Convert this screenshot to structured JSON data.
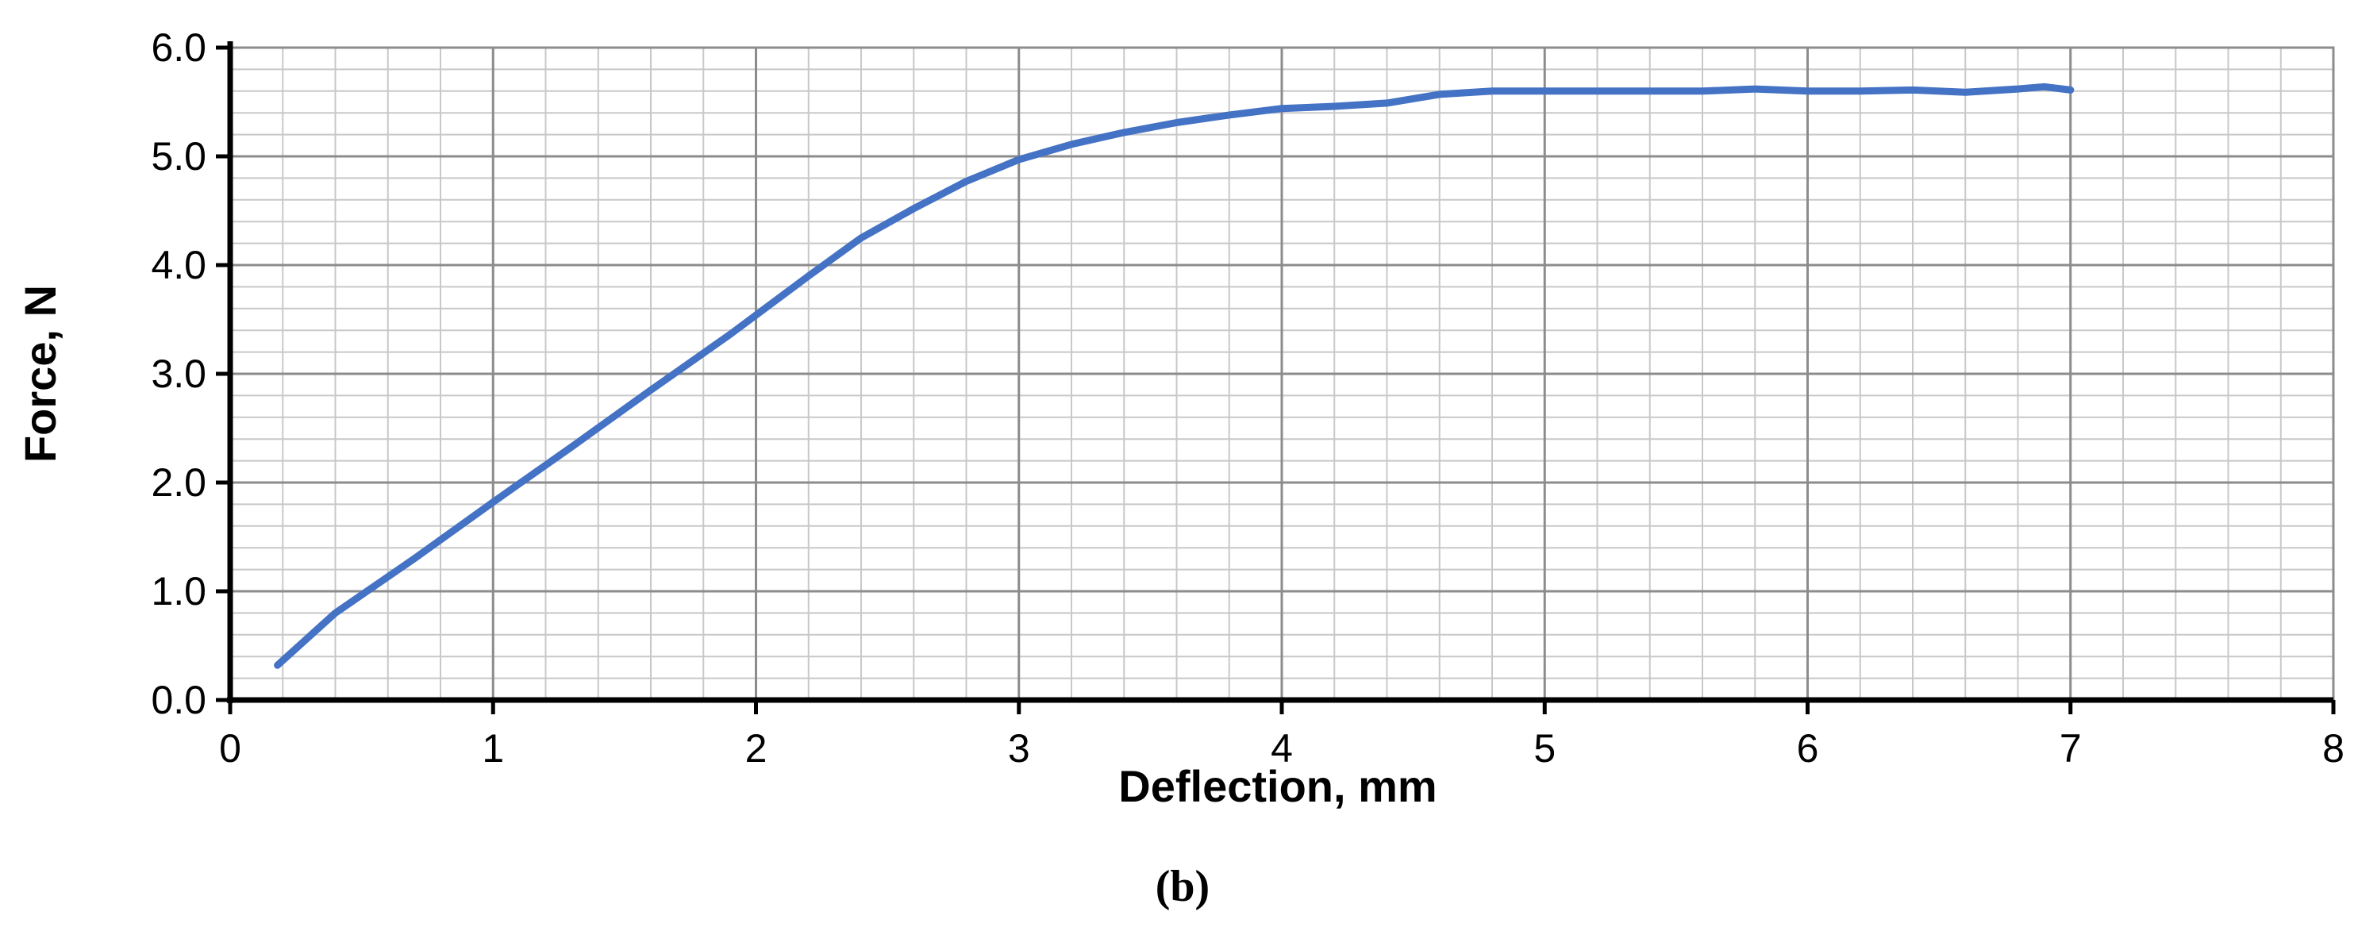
{
  "chart_data": {
    "type": "line",
    "title": "",
    "xlabel": "Deflection, mm",
    "ylabel": "Force, N",
    "caption": "(b)",
    "xlim": [
      0,
      8
    ],
    "ylim": [
      0,
      6
    ],
    "x_ticks": [
      "0",
      "1",
      "2",
      "3",
      "4",
      "5",
      "6",
      "7",
      "8"
    ],
    "y_ticks": [
      "0.0",
      "1.0",
      "2.0",
      "3.0",
      "4.0",
      "5.0",
      "6.0"
    ],
    "grid": true,
    "legend": "none",
    "line_color": "#4472C4",
    "series": [
      {
        "x": [
          0.18,
          0.4,
          0.7,
          1.0,
          1.3,
          1.6,
          1.9,
          2.2,
          2.4,
          2.6,
          2.8,
          3.0,
          3.2,
          3.4,
          3.6,
          3.8,
          4.0,
          4.2,
          4.4,
          4.6,
          4.8,
          5.0,
          5.2,
          5.4,
          5.6,
          5.8,
          6.0,
          6.2,
          6.4,
          6.6,
          6.8,
          6.9,
          7.0
        ],
        "y": [
          0.32,
          0.8,
          1.3,
          1.82,
          2.33,
          2.85,
          3.36,
          3.9,
          4.25,
          4.52,
          4.77,
          4.97,
          5.11,
          5.22,
          5.31,
          5.38,
          5.44,
          5.46,
          5.49,
          5.57,
          5.6,
          5.6,
          5.6,
          5.6,
          5.6,
          5.62,
          5.6,
          5.6,
          5.61,
          5.59,
          5.62,
          5.64,
          5.61
        ]
      }
    ]
  }
}
